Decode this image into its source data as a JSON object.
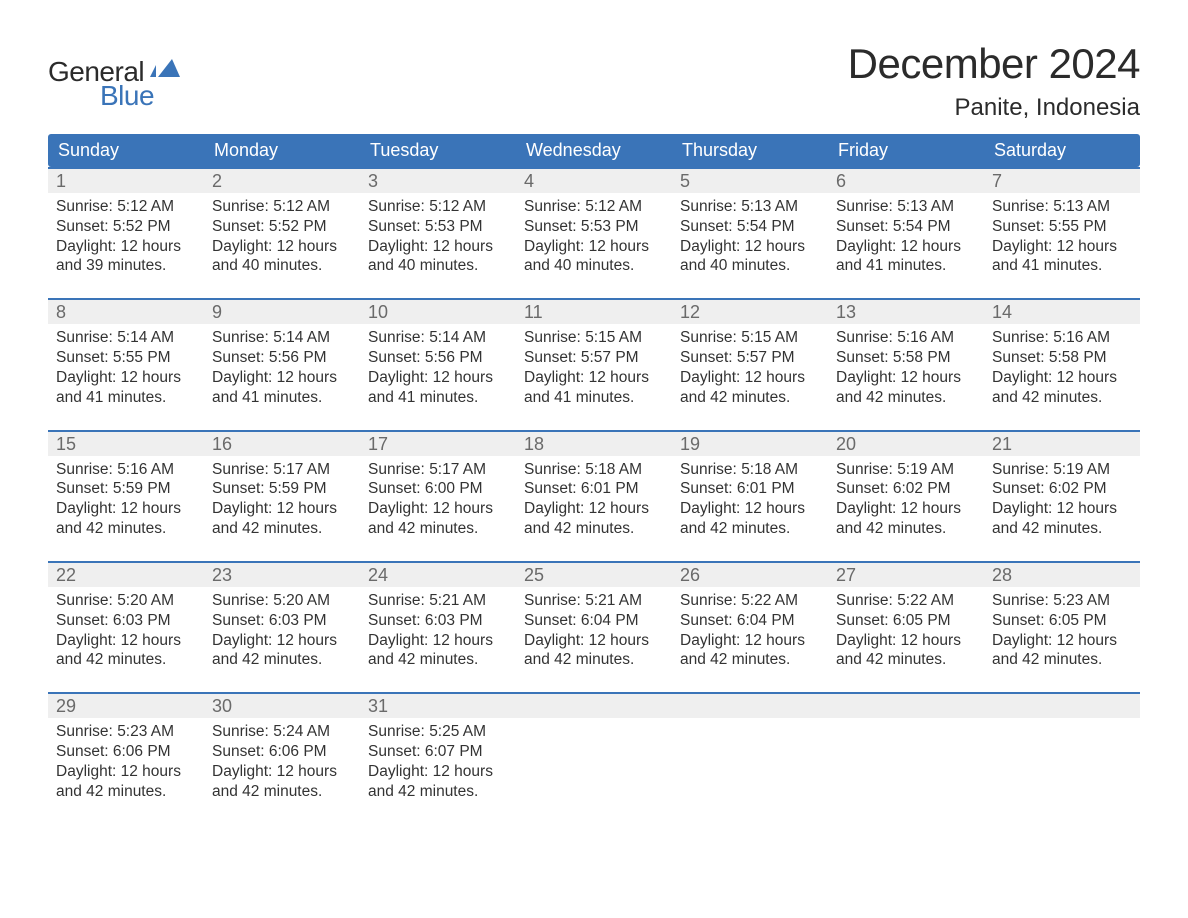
{
  "brand": {
    "word1": "General",
    "word2": "Blue",
    "flag_color": "#3a74b8"
  },
  "title": "December 2024",
  "location": "Panite, Indonesia",
  "colors": {
    "header_bg": "#3a74b8",
    "header_text": "#ffffff",
    "week_border": "#3a74b8",
    "daybar_bg": "#efefef",
    "daybar_text": "#6a6a6a",
    "body_text": "#333333",
    "page_bg": "#ffffff"
  },
  "weekdays": [
    "Sunday",
    "Monday",
    "Tuesday",
    "Wednesday",
    "Thursday",
    "Friday",
    "Saturday"
  ],
  "labels": {
    "sunrise": "Sunrise:",
    "sunset": "Sunset:",
    "daylight": "Daylight:"
  },
  "weeks": [
    [
      {
        "n": "1",
        "sunrise": "5:12 AM",
        "sunset": "5:52 PM",
        "daylight": "12 hours and 39 minutes."
      },
      {
        "n": "2",
        "sunrise": "5:12 AM",
        "sunset": "5:52 PM",
        "daylight": "12 hours and 40 minutes."
      },
      {
        "n": "3",
        "sunrise": "5:12 AM",
        "sunset": "5:53 PM",
        "daylight": "12 hours and 40 minutes."
      },
      {
        "n": "4",
        "sunrise": "5:12 AM",
        "sunset": "5:53 PM",
        "daylight": "12 hours and 40 minutes."
      },
      {
        "n": "5",
        "sunrise": "5:13 AM",
        "sunset": "5:54 PM",
        "daylight": "12 hours and 40 minutes."
      },
      {
        "n": "6",
        "sunrise": "5:13 AM",
        "sunset": "5:54 PM",
        "daylight": "12 hours and 41 minutes."
      },
      {
        "n": "7",
        "sunrise": "5:13 AM",
        "sunset": "5:55 PM",
        "daylight": "12 hours and 41 minutes."
      }
    ],
    [
      {
        "n": "8",
        "sunrise": "5:14 AM",
        "sunset": "5:55 PM",
        "daylight": "12 hours and 41 minutes."
      },
      {
        "n": "9",
        "sunrise": "5:14 AM",
        "sunset": "5:56 PM",
        "daylight": "12 hours and 41 minutes."
      },
      {
        "n": "10",
        "sunrise": "5:14 AM",
        "sunset": "5:56 PM",
        "daylight": "12 hours and 41 minutes."
      },
      {
        "n": "11",
        "sunrise": "5:15 AM",
        "sunset": "5:57 PM",
        "daylight": "12 hours and 41 minutes."
      },
      {
        "n": "12",
        "sunrise": "5:15 AM",
        "sunset": "5:57 PM",
        "daylight": "12 hours and 42 minutes."
      },
      {
        "n": "13",
        "sunrise": "5:16 AM",
        "sunset": "5:58 PM",
        "daylight": "12 hours and 42 minutes."
      },
      {
        "n": "14",
        "sunrise": "5:16 AM",
        "sunset": "5:58 PM",
        "daylight": "12 hours and 42 minutes."
      }
    ],
    [
      {
        "n": "15",
        "sunrise": "5:16 AM",
        "sunset": "5:59 PM",
        "daylight": "12 hours and 42 minutes."
      },
      {
        "n": "16",
        "sunrise": "5:17 AM",
        "sunset": "5:59 PM",
        "daylight": "12 hours and 42 minutes."
      },
      {
        "n": "17",
        "sunrise": "5:17 AM",
        "sunset": "6:00 PM",
        "daylight": "12 hours and 42 minutes."
      },
      {
        "n": "18",
        "sunrise": "5:18 AM",
        "sunset": "6:01 PM",
        "daylight": "12 hours and 42 minutes."
      },
      {
        "n": "19",
        "sunrise": "5:18 AM",
        "sunset": "6:01 PM",
        "daylight": "12 hours and 42 minutes."
      },
      {
        "n": "20",
        "sunrise": "5:19 AM",
        "sunset": "6:02 PM",
        "daylight": "12 hours and 42 minutes."
      },
      {
        "n": "21",
        "sunrise": "5:19 AM",
        "sunset": "6:02 PM",
        "daylight": "12 hours and 42 minutes."
      }
    ],
    [
      {
        "n": "22",
        "sunrise": "5:20 AM",
        "sunset": "6:03 PM",
        "daylight": "12 hours and 42 minutes."
      },
      {
        "n": "23",
        "sunrise": "5:20 AM",
        "sunset": "6:03 PM",
        "daylight": "12 hours and 42 minutes."
      },
      {
        "n": "24",
        "sunrise": "5:21 AM",
        "sunset": "6:03 PM",
        "daylight": "12 hours and 42 minutes."
      },
      {
        "n": "25",
        "sunrise": "5:21 AM",
        "sunset": "6:04 PM",
        "daylight": "12 hours and 42 minutes."
      },
      {
        "n": "26",
        "sunrise": "5:22 AM",
        "sunset": "6:04 PM",
        "daylight": "12 hours and 42 minutes."
      },
      {
        "n": "27",
        "sunrise": "5:22 AM",
        "sunset": "6:05 PM",
        "daylight": "12 hours and 42 minutes."
      },
      {
        "n": "28",
        "sunrise": "5:23 AM",
        "sunset": "6:05 PM",
        "daylight": "12 hours and 42 minutes."
      }
    ],
    [
      {
        "n": "29",
        "sunrise": "5:23 AM",
        "sunset": "6:06 PM",
        "daylight": "12 hours and 42 minutes."
      },
      {
        "n": "30",
        "sunrise": "5:24 AM",
        "sunset": "6:06 PM",
        "daylight": "12 hours and 42 minutes."
      },
      {
        "n": "31",
        "sunrise": "5:25 AM",
        "sunset": "6:07 PM",
        "daylight": "12 hours and 42 minutes."
      },
      {
        "empty": true
      },
      {
        "empty": true
      },
      {
        "empty": true
      },
      {
        "empty": true
      }
    ]
  ]
}
